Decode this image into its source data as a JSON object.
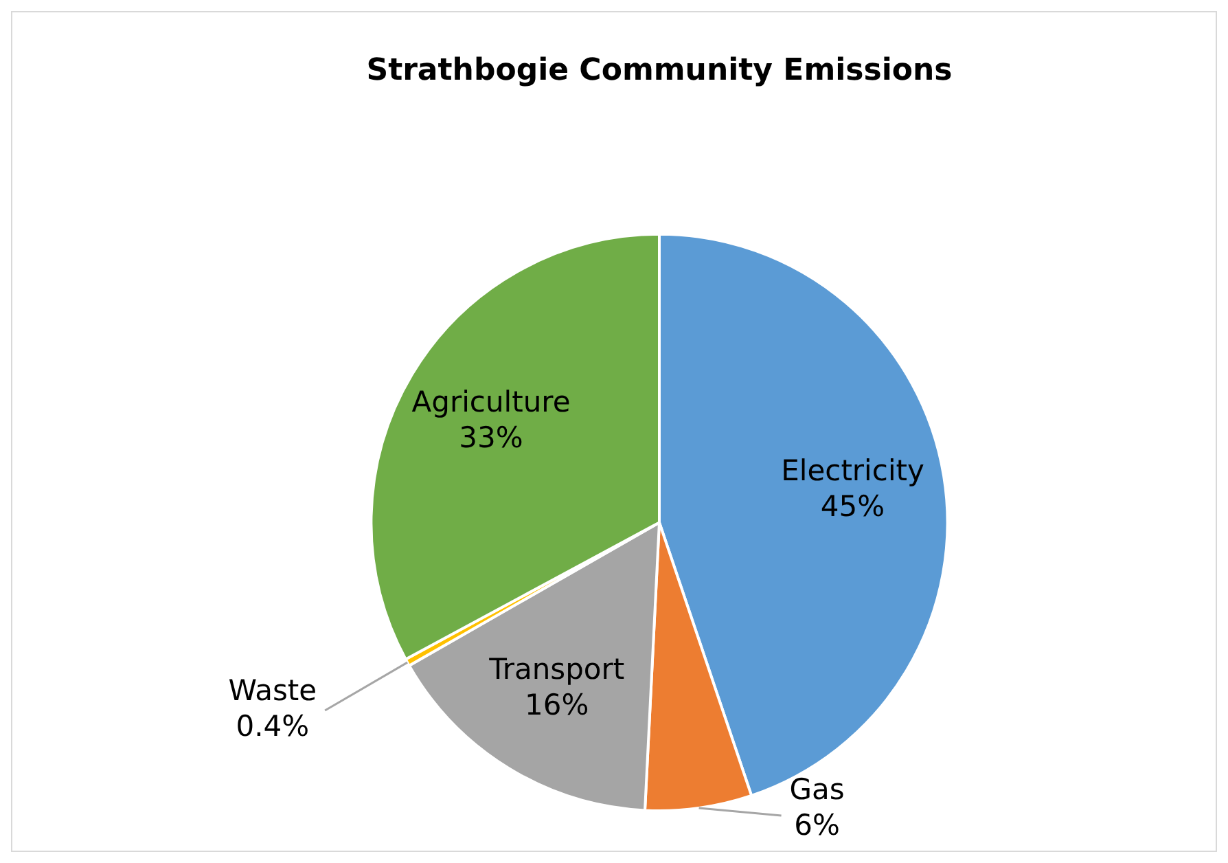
{
  "chart_data": {
    "type": "pie",
    "title": "Strathbogie Community Emissions",
    "categories": [
      "Electricity",
      "Gas",
      "Transport",
      "Waste",
      "Agriculture"
    ],
    "values": [
      45,
      6,
      16,
      0.4,
      33
    ],
    "colors": [
      "#5b9bd5",
      "#ed7d31",
      "#a5a5a5",
      "#ffc000",
      "#70ad47"
    ],
    "value_labels": [
      "45%",
      "6%",
      "16%",
      "0.4%",
      "33%"
    ],
    "legend": false
  }
}
